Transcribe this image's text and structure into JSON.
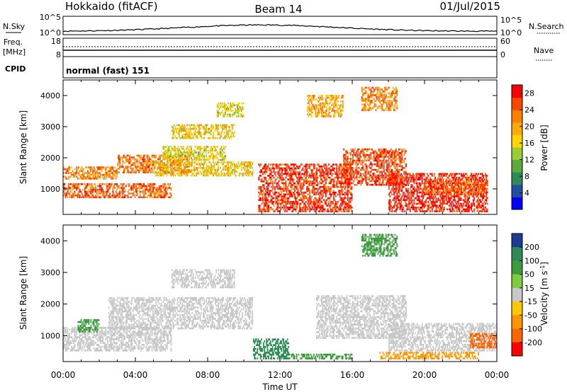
{
  "header": {
    "site": "Hokkaido (fitACF)",
    "beam": "Beam 14",
    "date": "01/Jul/2015"
  },
  "panels": {
    "nsky": {
      "label": "N.Sky",
      "ticks": [
        "10^5",
        "10^0"
      ],
      "right_ticks": [
        "10^5",
        "10^0"
      ],
      "right_label": "N.Search"
    },
    "freq": {
      "label_line1": "Freq.",
      "label_line2": "[MHz]",
      "ticks": [
        "18",
        "8"
      ],
      "right_ticks": [
        "60",
        "0"
      ],
      "right_label": "Nave"
    },
    "cpid": {
      "label": "CPID",
      "value": "normal (fast) 151"
    }
  },
  "colors": {
    "power_scale": [
      "#0000ff",
      "#1e4fa0",
      "#2e8b57",
      "#5aaa3c",
      "#9acd32",
      "#ffd400",
      "#ffaa00",
      "#ff7f00",
      "#ff4500",
      "#ff0000"
    ],
    "velocity_scale": [
      "#1e3c96",
      "#2e8b57",
      "#3c9b3c",
      "#7ccd3c",
      "#c8c8c8",
      "#ffc800",
      "#ff9600",
      "#ff6400",
      "#ff0000"
    ],
    "velocity_gray": "#c8c8c8"
  },
  "chart_data": [
    {
      "type": "heatmap",
      "name": "power",
      "title": "",
      "ylabel": "Slant Range [km]",
      "xlabel": "",
      "x_range_hours": [
        0,
        24
      ],
      "ylim": [
        180,
        4500
      ],
      "yticks": [
        "1000",
        "2000",
        "3000",
        "4000"
      ],
      "colorbar": {
        "label": "Power [dB]",
        "ticks": [
          "4",
          "8",
          "12",
          "16",
          "20",
          "24",
          "28"
        ],
        "range": [
          0,
          30
        ]
      },
      "bands": [
        {
          "t0": 0.0,
          "t1": 6.0,
          "r0": 700,
          "r1": 1150,
          "v": 24
        },
        {
          "t0": 0.0,
          "t1": 3.0,
          "r0": 1300,
          "r1": 1700,
          "v": 22
        },
        {
          "t0": 3.0,
          "t1": 7.0,
          "r0": 1500,
          "r1": 2100,
          "v": 23
        },
        {
          "t0": 5.0,
          "t1": 10.5,
          "r0": 1400,
          "r1": 1900,
          "v": 18
        },
        {
          "t0": 5.5,
          "t1": 9.0,
          "r0": 1900,
          "r1": 2400,
          "v": 16
        },
        {
          "t0": 6.0,
          "t1": 9.5,
          "r0": 2600,
          "r1": 3100,
          "v": 17
        },
        {
          "t0": 8.5,
          "t1": 10.0,
          "r0": 3300,
          "r1": 3800,
          "v": 16
        },
        {
          "t0": 10.8,
          "t1": 16.0,
          "r0": 250,
          "r1": 1800,
          "v": 27
        },
        {
          "t0": 13.5,
          "t1": 15.5,
          "r0": 3300,
          "r1": 4000,
          "v": 20
        },
        {
          "t0": 15.5,
          "t1": 19.0,
          "r0": 1100,
          "r1": 2300,
          "v": 26
        },
        {
          "t0": 16.5,
          "t1": 18.5,
          "r0": 3500,
          "r1": 4300,
          "v": 22
        },
        {
          "t0": 18.0,
          "t1": 23.5,
          "r0": 250,
          "r1": 1500,
          "v": 28
        },
        {
          "t0": 20.0,
          "t1": 23.5,
          "r0": 800,
          "r1": 1300,
          "v": 24
        }
      ]
    },
    {
      "type": "heatmap",
      "name": "velocity",
      "title": "",
      "ylabel": "Slant Range [km]",
      "xlabel": "Time UT",
      "x_range_hours": [
        0,
        24
      ],
      "ylim": [
        180,
        4500
      ],
      "yticks": [
        "1000",
        "2000",
        "3000",
        "4000"
      ],
      "xticks": [
        "00:00",
        "04:00",
        "08:00",
        "12:00",
        "16:00",
        "20:00",
        "00:00"
      ],
      "colorbar": {
        "label": "Velocity [m s^-1]",
        "ticks": [
          "200",
          "100",
          "50",
          "15",
          "-15",
          "-50",
          "-100",
          "-200"
        ],
        "range": [
          -250,
          250
        ]
      },
      "bands": [
        {
          "t0": 0.0,
          "t1": 6.0,
          "r0": 500,
          "r1": 1300,
          "v": 0
        },
        {
          "t0": 0.8,
          "t1": 2.0,
          "r0": 1100,
          "r1": 1500,
          "v": 60
        },
        {
          "t0": 2.5,
          "t1": 10.5,
          "r0": 1200,
          "r1": 2200,
          "v": 0
        },
        {
          "t0": 6.0,
          "t1": 9.5,
          "r0": 2500,
          "r1": 3100,
          "v": 0
        },
        {
          "t0": 10.5,
          "t1": 12.5,
          "r0": 250,
          "r1": 900,
          "v": 80
        },
        {
          "t0": 12.5,
          "t1": 16.0,
          "r0": 250,
          "r1": 450,
          "v": 40
        },
        {
          "t0": 14.0,
          "t1": 19.0,
          "r0": 900,
          "r1": 2300,
          "v": 0
        },
        {
          "t0": 16.5,
          "t1": 18.5,
          "r0": 3500,
          "r1": 4200,
          "v": 50
        },
        {
          "t0": 17.5,
          "t1": 23.0,
          "r0": 250,
          "r1": 500,
          "v": -60
        },
        {
          "t0": 18.0,
          "t1": 24.0,
          "r0": 500,
          "r1": 1400,
          "v": 0
        },
        {
          "t0": 22.5,
          "t1": 24.0,
          "r0": 600,
          "r1": 1100,
          "v": -80
        }
      ]
    }
  ],
  "footer": {
    "xlabel": "Time UT"
  }
}
